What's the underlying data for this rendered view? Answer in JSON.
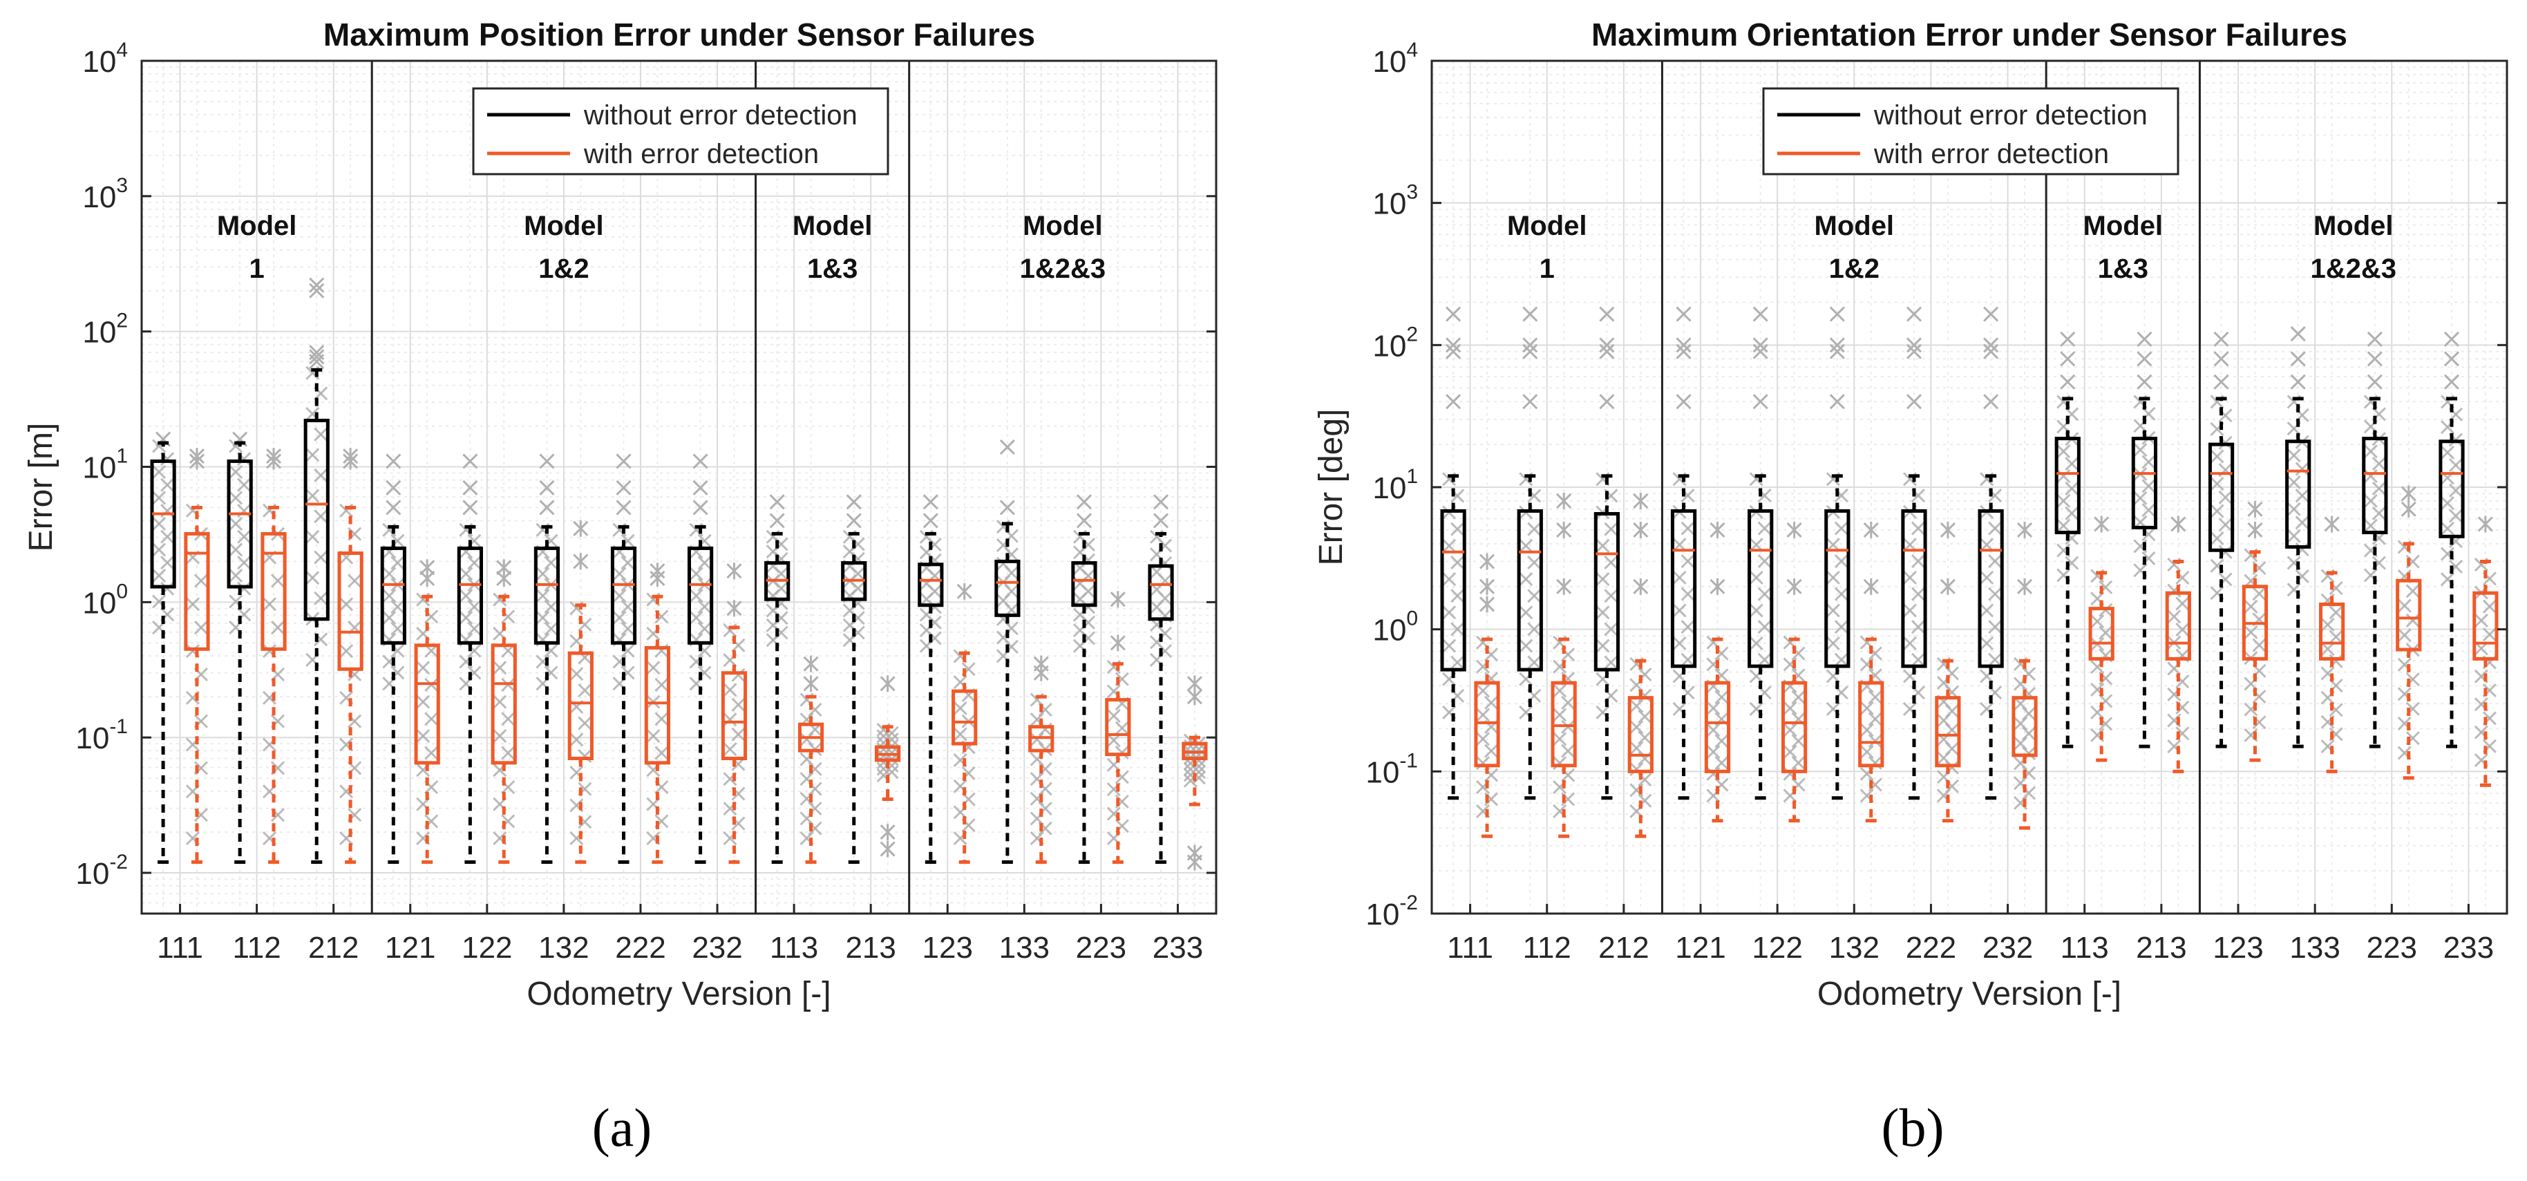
{
  "figure": {
    "panel_labels": [
      "(a)",
      "(b)"
    ]
  },
  "colors": {
    "without": "#000000",
    "with": "#f05a28",
    "outlier": "#b0b0b0",
    "grid_major": "#dcdcdc",
    "grid_minor": "#ececec"
  },
  "chart_data": [
    {
      "type": "boxplot",
      "yscale": "log",
      "title": "Maximum Position Error under Sensor Failures",
      "xlabel": "Odometry Version [-]",
      "ylabel": "Error [m]",
      "ylim": [
        0.005,
        10000
      ],
      "yticks": [
        0.01,
        0.1,
        1,
        10,
        100,
        1000,
        10000
      ],
      "ytick_labels": [
        [
          "10",
          "-2"
        ],
        [
          "10",
          "-1"
        ],
        [
          "10",
          "0"
        ],
        [
          "10",
          "1"
        ],
        [
          "10",
          "2"
        ],
        [
          "10",
          "3"
        ],
        [
          "10",
          "4"
        ]
      ],
      "grid": true,
      "legend": {
        "position": "top-center",
        "entries": [
          "without error detection",
          "with error detection"
        ]
      },
      "categories": [
        "111",
        "112",
        "212",
        "121",
        "122",
        "132",
        "222",
        "232",
        "113",
        "213",
        "123",
        "133",
        "223",
        "233"
      ],
      "groups": [
        {
          "label": [
            "Model",
            "1"
          ],
          "start": 0,
          "end": 2
        },
        {
          "label": [
            "Model",
            "1&2"
          ],
          "start": 3,
          "end": 7
        },
        {
          "label": [
            "Model",
            "1&3"
          ],
          "start": 8,
          "end": 9
        },
        {
          "label": [
            "Model",
            "1&2&3"
          ],
          "start": 10,
          "end": 13
        }
      ],
      "series": [
        {
          "name": "without error detection",
          "boxes": [
            {
              "wlo": 0.012,
              "q1": 1.3,
              "med": 4.5,
              "q3": 11,
              "whi": 15,
              "out": [
                16
              ]
            },
            {
              "wlo": 0.012,
              "q1": 1.3,
              "med": 4.5,
              "q3": 11,
              "whi": 15,
              "out": [
                16
              ]
            },
            {
              "wlo": 0.012,
              "q1": 0.75,
              "med": 5.3,
              "q3": 22,
              "whi": 52,
              "out": [
                60,
                65,
                70,
                200,
                220
              ]
            },
            {
              "wlo": 0.012,
              "q1": 0.5,
              "med": 1.35,
              "q3": 2.5,
              "whi": 3.6,
              "out": [
                5,
                7,
                11
              ]
            },
            {
              "wlo": 0.012,
              "q1": 0.5,
              "med": 1.35,
              "q3": 2.5,
              "whi": 3.6,
              "out": [
                5,
                7,
                11
              ]
            },
            {
              "wlo": 0.012,
              "q1": 0.5,
              "med": 1.35,
              "q3": 2.5,
              "whi": 3.6,
              "out": [
                5,
                7,
                11
              ]
            },
            {
              "wlo": 0.012,
              "q1": 0.5,
              "med": 1.35,
              "q3": 2.5,
              "whi": 3.6,
              "out": [
                5,
                7,
                11
              ]
            },
            {
              "wlo": 0.012,
              "q1": 0.5,
              "med": 1.35,
              "q3": 2.5,
              "whi": 3.6,
              "out": [
                5,
                7,
                11
              ]
            },
            {
              "wlo": 0.012,
              "q1": 1.05,
              "med": 1.45,
              "q3": 1.95,
              "whi": 3.2,
              "out": [
                4,
                5.5
              ]
            },
            {
              "wlo": 0.012,
              "q1": 1.05,
              "med": 1.45,
              "q3": 1.95,
              "whi": 3.2,
              "out": [
                4,
                5.5
              ]
            },
            {
              "wlo": 0.012,
              "q1": 0.95,
              "med": 1.45,
              "q3": 1.9,
              "whi": 3.2,
              "out": [
                4,
                5.5
              ]
            },
            {
              "wlo": 0.012,
              "q1": 0.8,
              "med": 1.4,
              "q3": 2.0,
              "whi": 3.8,
              "out": [
                5,
                14
              ]
            },
            {
              "wlo": 0.012,
              "q1": 0.95,
              "med": 1.45,
              "q3": 1.95,
              "whi": 3.2,
              "out": [
                4,
                5.5
              ]
            },
            {
              "wlo": 0.012,
              "q1": 0.75,
              "med": 1.35,
              "q3": 1.85,
              "whi": 3.2,
              "out": [
                4,
                5.5
              ]
            }
          ]
        },
        {
          "name": "with error detection",
          "boxes": [
            {
              "wlo": 0.012,
              "q1": 0.45,
              "med": 2.3,
              "q3": 3.2,
              "whi": 5,
              "out": [
                11,
                12
              ]
            },
            {
              "wlo": 0.012,
              "q1": 0.45,
              "med": 2.3,
              "q3": 3.2,
              "whi": 5,
              "out": [
                11,
                12
              ]
            },
            {
              "wlo": 0.012,
              "q1": 0.32,
              "med": 0.6,
              "q3": 2.3,
              "whi": 5,
              "out": [
                11,
                12
              ]
            },
            {
              "wlo": 0.012,
              "q1": 0.065,
              "med": 0.25,
              "q3": 0.48,
              "whi": 1.1,
              "out": [
                1.5,
                1.8
              ]
            },
            {
              "wlo": 0.012,
              "q1": 0.065,
              "med": 0.25,
              "q3": 0.48,
              "whi": 1.1,
              "out": [
                1.5,
                1.8
              ]
            },
            {
              "wlo": 0.012,
              "q1": 0.07,
              "med": 0.18,
              "q3": 0.42,
              "whi": 0.95,
              "out": [
                2,
                3.5
              ]
            },
            {
              "wlo": 0.012,
              "q1": 0.065,
              "med": 0.18,
              "q3": 0.46,
              "whi": 1.1,
              "out": [
                1.5,
                1.7
              ]
            },
            {
              "wlo": 0.012,
              "q1": 0.07,
              "med": 0.13,
              "q3": 0.3,
              "whi": 0.65,
              "out": [
                0.9,
                1.7
              ]
            },
            {
              "wlo": 0.012,
              "q1": 0.08,
              "med": 0.1,
              "q3": 0.125,
              "whi": 0.2,
              "out": [
                0.25,
                0.35
              ]
            },
            {
              "wlo": 0.035,
              "q1": 0.068,
              "med": 0.075,
              "q3": 0.085,
              "whi": 0.12,
              "out": [
                0.015,
                0.02,
                0.25
              ]
            },
            {
              "wlo": 0.012,
              "q1": 0.09,
              "med": 0.13,
              "q3": 0.22,
              "whi": 0.42,
              "out": [
                1.2
              ]
            },
            {
              "wlo": 0.012,
              "q1": 0.08,
              "med": 0.1,
              "q3": 0.12,
              "whi": 0.2,
              "out": [
                0.3,
                0.35
              ]
            },
            {
              "wlo": 0.012,
              "q1": 0.075,
              "med": 0.105,
              "q3": 0.19,
              "whi": 0.35,
              "out": [
                0.5,
                1.05
              ]
            },
            {
              "wlo": 0.032,
              "q1": 0.07,
              "med": 0.078,
              "q3": 0.09,
              "whi": 0.1,
              "out": [
                0.012,
                0.014,
                0.2,
                0.25
              ]
            }
          ]
        }
      ]
    },
    {
      "type": "boxplot",
      "yscale": "log",
      "title": "Maximum Orientation Error under Sensor Failures",
      "xlabel": "Odometry Version [-]",
      "ylabel": "Error [deg]",
      "ylim": [
        0.01,
        10000
      ],
      "yticks": [
        0.01,
        0.1,
        1,
        10,
        100,
        1000,
        10000
      ],
      "ytick_labels": [
        [
          "10",
          "-2"
        ],
        [
          "10",
          "-1"
        ],
        [
          "10",
          "0"
        ],
        [
          "10",
          "1"
        ],
        [
          "10",
          "2"
        ],
        [
          "10",
          "3"
        ],
        [
          "10",
          "4"
        ]
      ],
      "grid": true,
      "legend": {
        "position": "top-center",
        "entries": [
          "without error detection",
          "with error detection"
        ]
      },
      "categories": [
        "111",
        "112",
        "212",
        "121",
        "122",
        "132",
        "222",
        "232",
        "113",
        "213",
        "123",
        "133",
        "223",
        "233"
      ],
      "groups": [
        {
          "label": [
            "Model",
            "1"
          ],
          "start": 0,
          "end": 2
        },
        {
          "label": [
            "Model",
            "1&2"
          ],
          "start": 3,
          "end": 7
        },
        {
          "label": [
            "Model",
            "1&3"
          ],
          "start": 8,
          "end": 9
        },
        {
          "label": [
            "Model",
            "1&2&3"
          ],
          "start": 10,
          "end": 13
        }
      ],
      "series": [
        {
          "name": "without error detection",
          "boxes": [
            {
              "wlo": 0.065,
              "q1": 0.52,
              "med": 3.5,
              "q3": 6.8,
              "whi": 12,
              "out": [
                40,
                90,
                100,
                165
              ]
            },
            {
              "wlo": 0.065,
              "q1": 0.52,
              "med": 3.5,
              "q3": 6.8,
              "whi": 12,
              "out": [
                40,
                90,
                100,
                165
              ]
            },
            {
              "wlo": 0.065,
              "q1": 0.52,
              "med": 3.4,
              "q3": 6.5,
              "whi": 12,
              "out": [
                40,
                90,
                100,
                165
              ]
            },
            {
              "wlo": 0.065,
              "q1": 0.55,
              "med": 3.6,
              "q3": 6.8,
              "whi": 12,
              "out": [
                40,
                90,
                100,
                165
              ]
            },
            {
              "wlo": 0.065,
              "q1": 0.55,
              "med": 3.6,
              "q3": 6.8,
              "whi": 12,
              "out": [
                40,
                90,
                100,
                165
              ]
            },
            {
              "wlo": 0.065,
              "q1": 0.55,
              "med": 3.6,
              "q3": 6.8,
              "whi": 12,
              "out": [
                40,
                90,
                100,
                165
              ]
            },
            {
              "wlo": 0.065,
              "q1": 0.55,
              "med": 3.6,
              "q3": 6.8,
              "whi": 12,
              "out": [
                40,
                90,
                100,
                165
              ]
            },
            {
              "wlo": 0.065,
              "q1": 0.55,
              "med": 3.6,
              "q3": 6.8,
              "whi": 12,
              "out": [
                40,
                90,
                100,
                165
              ]
            },
            {
              "wlo": 0.15,
              "q1": 4.8,
              "med": 12.5,
              "q3": 22,
              "whi": 42,
              "out": [
                55,
                80,
                110
              ]
            },
            {
              "wlo": 0.15,
              "q1": 5.2,
              "med": 12.5,
              "q3": 22,
              "whi": 42,
              "out": [
                55,
                80,
                110
              ]
            },
            {
              "wlo": 0.15,
              "q1": 3.6,
              "med": 12.5,
              "q3": 20,
              "whi": 42,
              "out": [
                55,
                80,
                110
              ]
            },
            {
              "wlo": 0.15,
              "q1": 3.8,
              "med": 13,
              "q3": 21,
              "whi": 42,
              "out": [
                55,
                80,
                120
              ]
            },
            {
              "wlo": 0.15,
              "q1": 4.8,
              "med": 12.5,
              "q3": 22,
              "whi": 42,
              "out": [
                55,
                80,
                110
              ]
            },
            {
              "wlo": 0.15,
              "q1": 4.5,
              "med": 12.5,
              "q3": 21,
              "whi": 42,
              "out": [
                55,
                80,
                110
              ]
            }
          ]
        },
        {
          "name": "with error detection",
          "boxes": [
            {
              "wlo": 0.035,
              "q1": 0.11,
              "med": 0.22,
              "q3": 0.42,
              "whi": 0.85,
              "out": [
                1.5,
                2,
                3
              ]
            },
            {
              "wlo": 0.035,
              "q1": 0.11,
              "med": 0.21,
              "q3": 0.42,
              "whi": 0.85,
              "out": [
                2,
                5,
                8
              ]
            },
            {
              "wlo": 0.035,
              "q1": 0.1,
              "med": 0.13,
              "q3": 0.33,
              "whi": 0.6,
              "out": [
                2,
                5,
                8
              ]
            },
            {
              "wlo": 0.045,
              "q1": 0.1,
              "med": 0.22,
              "q3": 0.42,
              "whi": 0.85,
              "out": [
                2,
                5
              ]
            },
            {
              "wlo": 0.045,
              "q1": 0.1,
              "med": 0.22,
              "q3": 0.42,
              "whi": 0.85,
              "out": [
                2,
                5
              ]
            },
            {
              "wlo": 0.045,
              "q1": 0.11,
              "med": 0.16,
              "q3": 0.42,
              "whi": 0.85,
              "out": [
                2,
                5
              ]
            },
            {
              "wlo": 0.045,
              "q1": 0.11,
              "med": 0.18,
              "q3": 0.33,
              "whi": 0.6,
              "out": [
                2,
                5
              ]
            },
            {
              "wlo": 0.04,
              "q1": 0.13,
              "med": 0.13,
              "q3": 0.33,
              "whi": 0.6,
              "out": [
                2,
                5
              ]
            },
            {
              "wlo": 0.12,
              "q1": 0.62,
              "med": 0.8,
              "q3": 1.4,
              "whi": 2.5,
              "out": [
                5.5
              ]
            },
            {
              "wlo": 0.1,
              "q1": 0.62,
              "med": 0.8,
              "q3": 1.8,
              "whi": 3,
              "out": [
                5.5
              ]
            },
            {
              "wlo": 0.12,
              "q1": 0.62,
              "med": 1.1,
              "q3": 2.0,
              "whi": 3.5,
              "out": [
                5,
                7
              ]
            },
            {
              "wlo": 0.1,
              "q1": 0.62,
              "med": 0.8,
              "q3": 1.5,
              "whi": 2.5,
              "out": [
                5.5
              ]
            },
            {
              "wlo": 0.09,
              "q1": 0.72,
              "med": 1.2,
              "q3": 2.2,
              "whi": 4,
              "out": [
                7,
                9
              ]
            },
            {
              "wlo": 0.08,
              "q1": 0.62,
              "med": 0.8,
              "q3": 1.8,
              "whi": 3,
              "out": [
                5.5
              ]
            }
          ]
        }
      ]
    }
  ]
}
